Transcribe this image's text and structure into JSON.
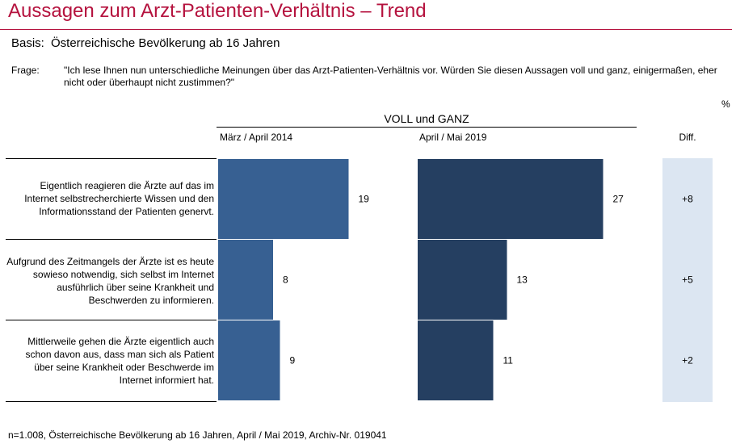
{
  "header": {
    "title": "Aussagen zum Arzt-Patienten-Verhältnis – Trend",
    "basis_label": "Basis:",
    "basis_value": "Österreichische Bevölkerung ab 16 Jahren",
    "frage_label": "Frage:",
    "frage_value": "\"Ich lese Ihnen nun unterschiedliche Meinungen über das Arzt-Patienten-Verhältnis vor. Würden Sie diesen Aussagen voll und ganz, einigermaßen, eher nicht oder überhaupt nicht zustimmen?\"",
    "unit": "%"
  },
  "colors": {
    "title": "#b5123e",
    "series_2014": "#376092",
    "series_2019": "#253f61",
    "diff_bg": "#dce6f2"
  },
  "chart_data": {
    "type": "bar",
    "orientation": "horizontal",
    "group_header": "VOLL und GANZ",
    "categories": [
      "Eigentlich reagieren die Ärzte auf das im Internet selbstrecherchierte Wissen und den Informationsstand der Patienten genervt.",
      "Aufgrund des Zeitmangels der Ärzte ist es heute sowieso notwendig, sich selbst im Internet ausführlich über seine Krankheit und Beschwerden zu informieren.",
      "Mittlerweile gehen die Ärzte eigentlich auch schon davon aus, dass man sich als Patient über seine Krankheit oder Beschwerde im Internet informiert hat."
    ],
    "series": [
      {
        "name": "März / April 2014",
        "values": [
          19,
          8,
          9
        ]
      },
      {
        "name": "April / Mai 2019",
        "values": [
          27,
          13,
          11
        ]
      }
    ],
    "diff_header": "Diff.",
    "diff": [
      "+8",
      "+5",
      "+2"
    ],
    "xlim": [
      0,
      27
    ],
    "grid": false
  },
  "footnote": "n=1.008, Österreichische Bevölkerung ab 16 Jahren, April / Mai 2019, Archiv-Nr. 019041"
}
